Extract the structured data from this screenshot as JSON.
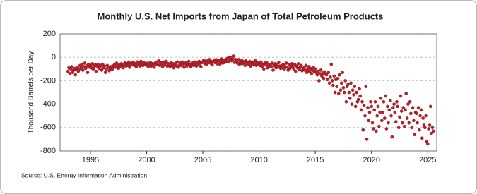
{
  "chart_data": {
    "type": "scatter",
    "title": "Monthly U.S. Net Imports from Japan of Total Petroleum Products",
    "y_label": "Thousand Barrels per Day",
    "source": "Source: U.S. Energy Information Administration",
    "color": "#b8202a",
    "grid": true,
    "xlim": [
      1992.3,
      2025.8
    ],
    "xticks": [
      1995,
      2000,
      2005,
      2010,
      2015,
      2020,
      2025
    ],
    "ylim": [
      -800,
      200
    ],
    "yticks": [
      200,
      0,
      -200,
      -400,
      -600,
      -800
    ],
    "x": [
      1993,
      1993.08,
      1993.17,
      1993.25,
      1993.33,
      1993.42,
      1993.5,
      1993.58,
      1993.67,
      1993.75,
      1993.83,
      1993.92,
      1994,
      1994.08,
      1994.17,
      1994.25,
      1994.33,
      1994.42,
      1994.5,
      1994.58,
      1994.67,
      1994.75,
      1994.83,
      1994.92,
      1995,
      1995.08,
      1995.17,
      1995.25,
      1995.33,
      1995.42,
      1995.5,
      1995.58,
      1995.67,
      1995.75,
      1995.83,
      1995.92,
      1996,
      1996.08,
      1996.17,
      1996.25,
      1996.33,
      1996.42,
      1996.5,
      1996.58,
      1996.67,
      1996.75,
      1996.83,
      1996.92,
      1997,
      1997.08,
      1997.17,
      1997.25,
      1997.33,
      1997.42,
      1997.5,
      1997.58,
      1997.67,
      1997.75,
      1997.83,
      1997.92,
      1998,
      1998.08,
      1998.17,
      1998.25,
      1998.33,
      1998.42,
      1998.5,
      1998.58,
      1998.67,
      1998.75,
      1998.83,
      1998.92,
      1999,
      1999.08,
      1999.17,
      1999.25,
      1999.33,
      1999.42,
      1999.5,
      1999.58,
      1999.67,
      1999.75,
      1999.83,
      1999.92,
      2000,
      2000.08,
      2000.17,
      2000.25,
      2000.33,
      2000.42,
      2000.5,
      2000.58,
      2000.67,
      2000.75,
      2000.83,
      2000.92,
      2001,
      2001.08,
      2001.17,
      2001.25,
      2001.33,
      2001.42,
      2001.5,
      2001.58,
      2001.67,
      2001.75,
      2001.83,
      2001.92,
      2002,
      2002.08,
      2002.17,
      2002.25,
      2002.33,
      2002.42,
      2002.5,
      2002.58,
      2002.67,
      2002.75,
      2002.83,
      2002.92,
      2003,
      2003.08,
      2003.17,
      2003.25,
      2003.33,
      2003.42,
      2003.5,
      2003.58,
      2003.67,
      2003.75,
      2003.83,
      2003.92,
      2004,
      2004.08,
      2004.17,
      2004.25,
      2004.33,
      2004.42,
      2004.5,
      2004.58,
      2004.67,
      2004.75,
      2004.83,
      2004.92,
      2005,
      2005.08,
      2005.17,
      2005.25,
      2005.33,
      2005.42,
      2005.5,
      2005.58,
      2005.67,
      2005.75,
      2005.83,
      2005.92,
      2006,
      2006.08,
      2006.17,
      2006.25,
      2006.33,
      2006.42,
      2006.5,
      2006.58,
      2006.67,
      2006.75,
      2006.83,
      2006.92,
      2007,
      2007.08,
      2007.17,
      2007.25,
      2007.33,
      2007.42,
      2007.5,
      2007.58,
      2007.67,
      2007.75,
      2007.83,
      2007.92,
      2008,
      2008.08,
      2008.17,
      2008.25,
      2008.33,
      2008.42,
      2008.5,
      2008.58,
      2008.67,
      2008.75,
      2008.83,
      2008.92,
      2009,
      2009.08,
      2009.17,
      2009.25,
      2009.33,
      2009.42,
      2009.5,
      2009.58,
      2009.67,
      2009.75,
      2009.83,
      2009.92,
      2010,
      2010.08,
      2010.17,
      2010.25,
      2010.33,
      2010.42,
      2010.5,
      2010.58,
      2010.67,
      2010.75,
      2010.83,
      2010.92,
      2011,
      2011.08,
      2011.17,
      2011.25,
      2011.33,
      2011.42,
      2011.5,
      2011.58,
      2011.67,
      2011.75,
      2011.83,
      2011.92,
      2012,
      2012.08,
      2012.17,
      2012.25,
      2012.33,
      2012.42,
      2012.5,
      2012.58,
      2012.67,
      2012.75,
      2012.83,
      2012.92,
      2013,
      2013.08,
      2013.17,
      2013.25,
      2013.33,
      2013.42,
      2013.5,
      2013.58,
      2013.67,
      2013.75,
      2013.83,
      2013.92,
      2014,
      2014.08,
      2014.17,
      2014.25,
      2014.33,
      2014.42,
      2014.5,
      2014.58,
      2014.67,
      2014.75,
      2014.83,
      2014.92,
      2015,
      2015.08,
      2015.17,
      2015.25,
      2015.33,
      2015.42,
      2015.5,
      2015.58,
      2015.67,
      2015.75,
      2015.83,
      2015.92,
      2016,
      2016.08,
      2016.17,
      2016.25,
      2016.33,
      2016.42,
      2016.5,
      2016.58,
      2016.67,
      2016.75,
      2016.83,
      2016.92,
      2017,
      2017.08,
      2017.17,
      2017.25,
      2017.33,
      2017.42,
      2017.5,
      2017.58,
      2017.67,
      2017.75,
      2017.83,
      2017.92,
      2018,
      2018.08,
      2018.17,
      2018.25,
      2018.33,
      2018.42,
      2018.5,
      2018.58,
      2018.67,
      2018.75,
      2018.83,
      2018.92,
      2019,
      2019.08,
      2019.17,
      2019.25,
      2019.33,
      2019.42,
      2019.5,
      2019.58,
      2019.67,
      2019.75,
      2019.83,
      2019.92,
      2020,
      2020.08,
      2020.17,
      2020.25,
      2020.33,
      2020.42,
      2020.5,
      2020.58,
      2020.67,
      2020.75,
      2020.83,
      2020.92,
      2021,
      2021.08,
      2021.17,
      2021.25,
      2021.33,
      2021.42,
      2021.5,
      2021.58,
      2021.67,
      2021.75,
      2021.83,
      2021.92,
      2022,
      2022.08,
      2022.17,
      2022.25,
      2022.33,
      2022.42,
      2022.5,
      2022.58,
      2022.67,
      2022.75,
      2022.83,
      2022.92,
      2023,
      2023.08,
      2023.17,
      2023.25,
      2023.33,
      2023.42,
      2023.5,
      2023.58,
      2023.67,
      2023.75,
      2023.83,
      2023.92,
      2024,
      2024.08,
      2024.17,
      2024.25,
      2024.33,
      2024.42,
      2024.5,
      2024.58,
      2024.67,
      2024.75,
      2024.83,
      2024.92,
      2025,
      2025.08,
      2025.17,
      2025.25,
      2025.33,
      2025.42,
      2025.5
    ],
    "values": [
      -120,
      -90,
      -140,
      -100,
      -80,
      -130,
      -110,
      -95,
      -150,
      -105,
      -85,
      -120,
      -100,
      -70,
      -90,
      -60,
      -110,
      -80,
      -50,
      -95,
      -75,
      -130,
      -60,
      -85,
      -70,
      -90,
      -55,
      -100,
      -80,
      -65,
      -120,
      -75,
      -60,
      -95,
      -85,
      -70,
      -110,
      -60,
      -90,
      -75,
      -130,
      -100,
      -70,
      -85,
      -115,
      -95,
      -80,
      -105,
      -90,
      -70,
      -60,
      -85,
      -50,
      -75,
      -95,
      -65,
      -80,
      -55,
      -70,
      -90,
      -60,
      -45,
      -75,
      -55,
      -70,
      -40,
      -85,
      -60,
      -50,
      -65,
      -45,
      -70,
      -55,
      -80,
      -40,
      -65,
      -50,
      -75,
      -35,
      -60,
      -70,
      -45,
      -55,
      -65,
      -70,
      -50,
      -80,
      -60,
      -45,
      -75,
      -55,
      -65,
      -85,
      -50,
      -60,
      -40,
      -60,
      -30,
      -70,
      -45,
      -55,
      -80,
      -40,
      -65,
      -50,
      -35,
      -75,
      -55,
      -65,
      -80,
      -45,
      -70,
      -55,
      -90,
      -60,
      -50,
      -75,
      -40,
      -85,
      -65,
      -50,
      -70,
      -40,
      -60,
      -85,
      -55,
      -45,
      -75,
      -65,
      -35,
      -60,
      -80,
      -55,
      -45,
      -70,
      -60,
      -40,
      -75,
      -50,
      -65,
      -35,
      -55,
      -80,
      -45,
      -40,
      -25,
      -55,
      -35,
      -60,
      -30,
      -45,
      -20,
      -50,
      -35,
      -65,
      -40,
      -30,
      -45,
      -20,
      -55,
      -35,
      -25,
      -60,
      -40,
      -15,
      -50,
      -30,
      -45,
      -20,
      -35,
      -10,
      -40,
      -5,
      -25,
      0,
      -30,
      -15,
      10,
      -45,
      -20,
      -30,
      -50,
      -20,
      -60,
      -40,
      -25,
      -55,
      -35,
      -45,
      -70,
      -30,
      -50,
      -45,
      -60,
      -35,
      -75,
      -50,
      -40,
      -65,
      -55,
      -30,
      -70,
      -45,
      -60,
      -55,
      -70,
      -40,
      -80,
      -60,
      -100,
      -50,
      -65,
      -45,
      -90,
      -60,
      -75,
      -60,
      -80,
      -50,
      -110,
      -70,
      -55,
      -90,
      -65,
      -85,
      -45,
      -75,
      -95,
      -70,
      -90,
      -60,
      -100,
      -80,
      -50,
      -85,
      -110,
      -65,
      -95,
      -75,
      -55,
      -80,
      -100,
      -60,
      -120,
      -75,
      -90,
      -55,
      -105,
      -85,
      -70,
      -115,
      -95,
      -90,
      -110,
      -70,
      -130,
      -100,
      -80,
      -120,
      -95,
      -140,
      -110,
      -85,
      -125,
      -100,
      -130,
      -150,
      -120,
      -200,
      -140,
      -110,
      -160,
      -135,
      -180,
      -125,
      -145,
      -150,
      -190,
      -130,
      -220,
      -170,
      -60,
      -200,
      -240,
      -160,
      -300,
      -190,
      -250,
      -180,
      -310,
      -150,
      -280,
      -220,
      -130,
      -260,
      -300,
      -200,
      -380,
      -250,
      -230,
      -300,
      -350,
      -220,
      -400,
      -280,
      -320,
      -250,
      -420,
      -300,
      -380,
      -360,
      -270,
      -330,
      -450,
      -380,
      -620,
      -410,
      -500,
      -250,
      -700,
      -430,
      -540,
      -470,
      -380,
      -420,
      -560,
      -610,
      -450,
      -380,
      -630,
      -500,
      -420,
      -590,
      -470,
      -350,
      -540,
      -470,
      -380,
      -520,
      -330,
      -610,
      -420,
      -560,
      -450,
      -370,
      -500,
      -680,
      -430,
      -400,
      -470,
      -550,
      -380,
      -420,
      -600,
      -510,
      -330,
      -460,
      -560,
      -430,
      -590,
      -450,
      -310,
      -520,
      -400,
      -560,
      -380,
      -480,
      -600,
      -430,
      -540,
      -660,
      -470,
      -480,
      -560,
      -430,
      -620,
      -500,
      -450,
      -690,
      -520,
      -580,
      -600,
      -500,
      -720,
      -740,
      -610,
      -580,
      -420,
      -650,
      -600,
      -630
    ]
  }
}
